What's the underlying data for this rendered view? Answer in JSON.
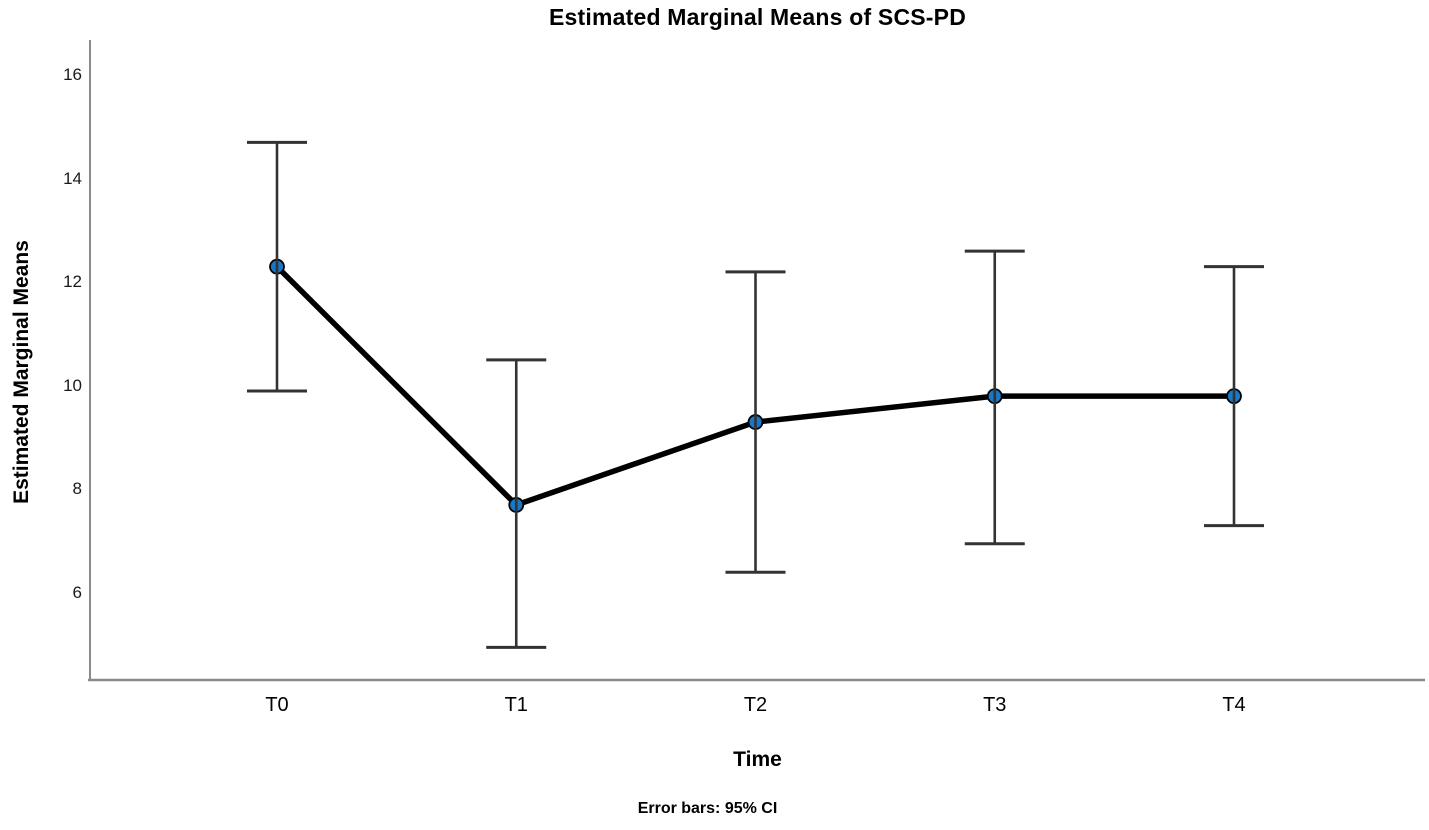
{
  "chart_data": {
    "type": "line",
    "title": "Estimated Marginal Means of SCS-PD",
    "xlabel": "Time",
    "ylabel": "Estimated Marginal Means",
    "footnote": "Error bars: 95% CI",
    "categories": [
      "T0",
      "T1",
      "T2",
      "T3",
      "T4"
    ],
    "series": [
      {
        "name": "SCS-PD",
        "means": [
          12.3,
          7.7,
          9.3,
          9.8,
          9.8
        ],
        "ci_low": [
          9.9,
          4.95,
          6.4,
          6.95,
          7.3
        ],
        "ci_high": [
          14.7,
          10.5,
          12.2,
          12.6,
          12.3
        ]
      }
    ],
    "y_ticks": [
      6,
      8,
      10,
      12,
      14,
      16
    ],
    "ylim": [
      4.3,
      16.7
    ],
    "error_bar_type": "95% CI",
    "grid": "off",
    "legend": "none",
    "colors": {
      "marker_fill": "#1878C8",
      "series_line": "#000000",
      "error_bar": "#333333",
      "axis_line": "#8A8A8A",
      "text": "#000000"
    }
  }
}
